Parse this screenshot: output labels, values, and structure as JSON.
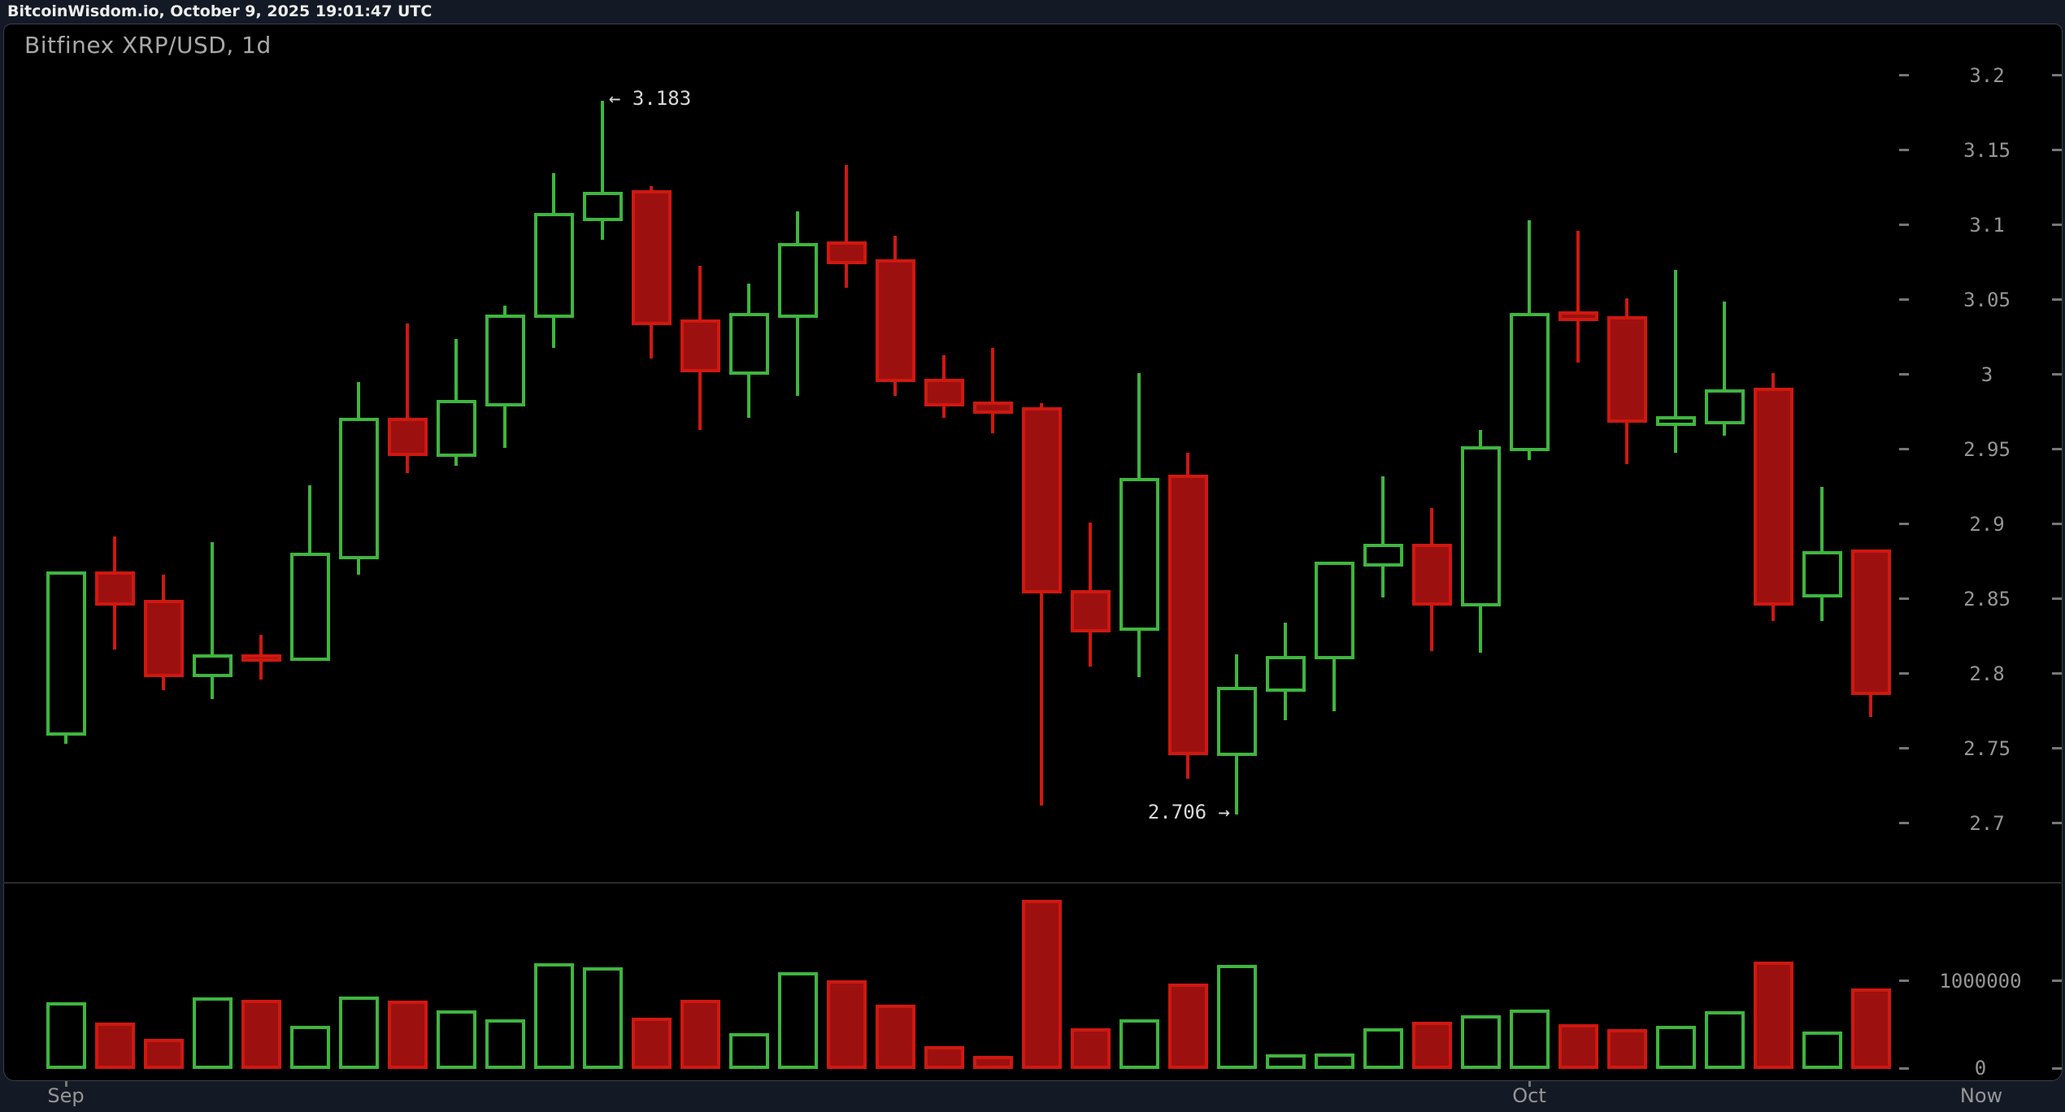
{
  "header": {
    "status_text": "BitcoinWisdom.io, October 9, 2025 19:01:47 UTC"
  },
  "chart": {
    "title": "Bitfinex XRP/USD, 1d"
  },
  "colors": {
    "bg_page": "#141a25",
    "bg_chart": "#000000",
    "up_green": "#3fb53f",
    "down_red_fill": "#9c1110",
    "down_red_border": "#cf1810",
    "axis_text": "#969696",
    "title_text": "#a8a8a8",
    "header_text": "#ededed",
    "annotation_text": "#d9d9d9",
    "tick": "#777777",
    "border": "#3a3f4a",
    "divider": "#2b2b2b"
  },
  "price_axis": {
    "ticks": [
      {
        "label": "3.2",
        "value": 3.2
      },
      {
        "label": "3.15",
        "value": 3.15
      },
      {
        "label": "3.1",
        "value": 3.1
      },
      {
        "label": "3.05",
        "value": 3.05
      },
      {
        "label": "3",
        "value": 3.0
      },
      {
        "label": "2.95",
        "value": 2.95
      },
      {
        "label": "2.9",
        "value": 2.9
      },
      {
        "label": "2.85",
        "value": 2.85
      },
      {
        "label": "2.8",
        "value": 2.8
      },
      {
        "label": "2.75",
        "value": 2.75
      },
      {
        "label": "2.7",
        "value": 2.7
      }
    ]
  },
  "volume_axis": {
    "ticks": [
      {
        "label": "1000000",
        "value": 1000000
      },
      {
        "label": "0",
        "value": 0
      }
    ]
  },
  "x_axis": {
    "labels": [
      {
        "label": "Sep",
        "candle_index": 0
      },
      {
        "label": "Oct",
        "candle_index": 30
      },
      {
        "label": "Now",
        "at_right_edge": true
      }
    ]
  },
  "annotations": [
    {
      "text": "← 3.183",
      "value": 3.183,
      "candle_index": 11,
      "side": "right-of-wick"
    },
    {
      "text": "2.706 →",
      "value": 2.706,
      "candle_index": 24,
      "side": "left-of-wick"
    }
  ],
  "chart_data": {
    "type": "candlestick-with-volume",
    "exchange_pair_interval": "Bitfinex XRP/USD, 1d",
    "price_ylim": [
      2.7,
      3.2
    ],
    "volume_ylim": [
      0,
      2100000
    ],
    "grid": false,
    "high_annotation": 3.183,
    "low_annotation": 2.706,
    "candles": [
      {
        "o": 2.761,
        "h": 2.868,
        "l": 2.753,
        "c": 2.866,
        "v": 760000,
        "dir": "up"
      },
      {
        "o": 2.866,
        "h": 2.892,
        "l": 2.816,
        "c": 2.848,
        "v": 525000,
        "dir": "down"
      },
      {
        "o": 2.847,
        "h": 2.866,
        "l": 2.789,
        "c": 2.8,
        "v": 337000,
        "dir": "down"
      },
      {
        "o": 2.8,
        "h": 2.888,
        "l": 2.783,
        "c": 2.811,
        "v": 807000,
        "dir": "up"
      },
      {
        "o": 2.811,
        "h": 2.826,
        "l": 2.796,
        "c": 2.81,
        "v": 786000,
        "dir": "down"
      },
      {
        "o": 2.811,
        "h": 2.926,
        "l": 2.811,
        "c": 2.879,
        "v": 486000,
        "dir": "up"
      },
      {
        "o": 2.879,
        "h": 2.995,
        "l": 2.866,
        "c": 2.969,
        "v": 817000,
        "dir": "up"
      },
      {
        "o": 2.969,
        "h": 3.034,
        "l": 2.934,
        "c": 2.948,
        "v": 771000,
        "dir": "down"
      },
      {
        "o": 2.947,
        "h": 3.024,
        "l": 2.939,
        "c": 2.981,
        "v": 658000,
        "dir": "up"
      },
      {
        "o": 2.981,
        "h": 3.046,
        "l": 2.951,
        "c": 3.038,
        "v": 563000,
        "dir": "up"
      },
      {
        "o": 3.04,
        "h": 3.135,
        "l": 3.018,
        "c": 3.106,
        "v": 1200000,
        "dir": "up"
      },
      {
        "o": 3.105,
        "h": 3.183,
        "l": 3.09,
        "c": 3.12,
        "v": 1153000,
        "dir": "up"
      },
      {
        "o": 3.121,
        "h": 3.126,
        "l": 3.011,
        "c": 3.035,
        "v": 578000,
        "dir": "down"
      },
      {
        "o": 3.035,
        "h": 3.073,
        "l": 2.963,
        "c": 3.004,
        "v": 780000,
        "dir": "down"
      },
      {
        "o": 3.002,
        "h": 3.061,
        "l": 2.971,
        "c": 3.039,
        "v": 404000,
        "dir": "up"
      },
      {
        "o": 3.04,
        "h": 3.109,
        "l": 2.986,
        "c": 3.086,
        "v": 1098000,
        "dir": "up"
      },
      {
        "o": 3.087,
        "h": 3.14,
        "l": 3.058,
        "c": 3.076,
        "v": 1006000,
        "dir": "down"
      },
      {
        "o": 3.075,
        "h": 3.093,
        "l": 2.986,
        "c": 2.997,
        "v": 731000,
        "dir": "down"
      },
      {
        "o": 2.995,
        "h": 3.013,
        "l": 2.971,
        "c": 2.981,
        "v": 250000,
        "dir": "down"
      },
      {
        "o": 2.98,
        "h": 3.018,
        "l": 2.961,
        "c": 2.976,
        "v": 144000,
        "dir": "down"
      },
      {
        "o": 2.976,
        "h": 2.981,
        "l": 2.712,
        "c": 2.856,
        "v": 1924000,
        "dir": "down"
      },
      {
        "o": 2.854,
        "h": 2.901,
        "l": 2.805,
        "c": 2.83,
        "v": 456000,
        "dir": "down"
      },
      {
        "o": 2.831,
        "h": 3.001,
        "l": 2.798,
        "c": 2.929,
        "v": 563000,
        "dir": "up"
      },
      {
        "o": 2.931,
        "h": 2.948,
        "l": 2.73,
        "c": 2.748,
        "v": 970000,
        "dir": "down"
      },
      {
        "o": 2.747,
        "h": 2.813,
        "l": 2.706,
        "c": 2.789,
        "v": 1183000,
        "dir": "up"
      },
      {
        "o": 2.79,
        "h": 2.834,
        "l": 2.769,
        "c": 2.81,
        "v": 159000,
        "dir": "up"
      },
      {
        "o": 2.812,
        "h": 2.873,
        "l": 2.775,
        "c": 2.873,
        "v": 174000,
        "dir": "up"
      },
      {
        "o": 2.874,
        "h": 2.932,
        "l": 2.851,
        "c": 2.885,
        "v": 456000,
        "dir": "up"
      },
      {
        "o": 2.885,
        "h": 2.911,
        "l": 2.815,
        "c": 2.848,
        "v": 532000,
        "dir": "down"
      },
      {
        "o": 2.847,
        "h": 2.963,
        "l": 2.814,
        "c": 2.95,
        "v": 603000,
        "dir": "up"
      },
      {
        "o": 2.951,
        "h": 3.103,
        "l": 2.943,
        "c": 3.039,
        "v": 670000,
        "dir": "up"
      },
      {
        "o": 3.04,
        "h": 3.096,
        "l": 3.008,
        "c": 3.038,
        "v": 502000,
        "dir": "down"
      },
      {
        "o": 3.037,
        "h": 3.051,
        "l": 2.94,
        "c": 2.97,
        "v": 450000,
        "dir": "down"
      },
      {
        "o": 2.968,
        "h": 3.07,
        "l": 2.948,
        "c": 2.97,
        "v": 486000,
        "dir": "up"
      },
      {
        "o": 2.969,
        "h": 3.049,
        "l": 2.959,
        "c": 2.988,
        "v": 654000,
        "dir": "up"
      },
      {
        "o": 2.989,
        "h": 3.001,
        "l": 2.835,
        "c": 2.848,
        "v": 1223000,
        "dir": "down"
      },
      {
        "o": 2.853,
        "h": 2.925,
        "l": 2.835,
        "c": 2.88,
        "v": 418000,
        "dir": "up"
      },
      {
        "o": 2.881,
        "h": 2.881,
        "l": 2.771,
        "c": 2.788,
        "v": 913000,
        "dir": "down"
      }
    ]
  }
}
